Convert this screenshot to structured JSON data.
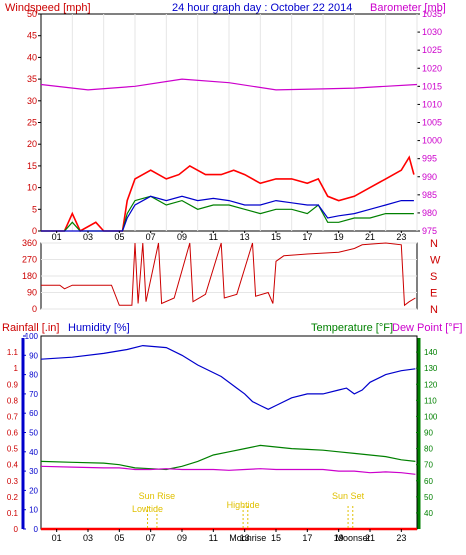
{
  "chart_data": [
    {
      "type": "line",
      "title": "24 hour graph day : October 22 2014",
      "ylabel_left": "Windspeed [mph]",
      "ylabel_right": "Barometer [mb]",
      "x_hours": [
        "01",
        "03",
        "05",
        "07",
        "09",
        "11",
        "13",
        "15",
        "17",
        "19",
        "21",
        "23"
      ],
      "ylim_left": [
        0,
        50
      ],
      "yticks_left": [
        "0",
        "5",
        "10",
        "15",
        "20",
        "25",
        "30",
        "35",
        "40",
        "45",
        "50"
      ],
      "ylim_right": [
        975,
        1035
      ],
      "yticks_right": [
        "975",
        "980",
        "985",
        "990",
        "995",
        "1000",
        "1005",
        "1010",
        "1015",
        "1020",
        "1025",
        "1030",
        "1035"
      ],
      "colors": {
        "gust": "#ff0000",
        "wind": "#008000",
        "avg": "#0000cc",
        "barometer": "#cc00cc",
        "axis_left": "#cc0000",
        "axis_right": "#cc00cc",
        "title": "#0000cc"
      },
      "series": [
        {
          "key": "barometer",
          "points": [
            [
              0,
              1015.5
            ],
            [
              3,
              1014
            ],
            [
              6,
              1015
            ],
            [
              9,
              1017
            ],
            [
              12,
              1016
            ],
            [
              15,
              1014
            ],
            [
              18,
              1014.3
            ],
            [
              20,
              1014.5
            ],
            [
              22,
              1015
            ],
            [
              24,
              1015.5
            ]
          ]
        },
        {
          "key": "gust",
          "points": [
            [
              0,
              0
            ],
            [
              1.5,
              0
            ],
            [
              2,
              4
            ],
            [
              2.5,
              0
            ],
            [
              3.5,
              2
            ],
            [
              4,
              0
            ],
            [
              5.2,
              0
            ],
            [
              5.5,
              7
            ],
            [
              6,
              12
            ],
            [
              6.5,
              13
            ],
            [
              7,
              14
            ],
            [
              8,
              12
            ],
            [
              8.8,
              13
            ],
            [
              9.5,
              15
            ],
            [
              10.5,
              13
            ],
            [
              11.5,
              13
            ],
            [
              12.3,
              14
            ],
            [
              13,
              13
            ],
            [
              14,
              11
            ],
            [
              15,
              12
            ],
            [
              16,
              12
            ],
            [
              17,
              11
            ],
            [
              17.7,
              12
            ],
            [
              18.3,
              8
            ],
            [
              19,
              7
            ],
            [
              20,
              8
            ],
            [
              21,
              10
            ],
            [
              22,
              12
            ],
            [
              23,
              14
            ],
            [
              23.5,
              17
            ],
            [
              23.8,
              13
            ]
          ]
        },
        {
          "key": "wind",
          "points": [
            [
              0,
              0
            ],
            [
              1.5,
              0
            ],
            [
              2,
              2
            ],
            [
              2.5,
              0
            ],
            [
              5.2,
              0
            ],
            [
              5.5,
              4
            ],
            [
              6,
              7
            ],
            [
              7,
              8
            ],
            [
              8,
              6
            ],
            [
              9,
              7
            ],
            [
              10,
              5
            ],
            [
              11,
              6
            ],
            [
              12,
              6
            ],
            [
              13,
              5
            ],
            [
              14,
              4
            ],
            [
              15,
              5
            ],
            [
              16,
              5
            ],
            [
              17,
              4
            ],
            [
              17.7,
              6
            ],
            [
              18.3,
              2
            ],
            [
              19,
              2
            ],
            [
              20,
              3
            ],
            [
              21,
              3
            ],
            [
              22,
              4
            ],
            [
              23,
              4
            ],
            [
              23.8,
              4
            ]
          ]
        },
        {
          "key": "avg",
          "points": [
            [
              0,
              0
            ],
            [
              5.2,
              0
            ],
            [
              5.5,
              3
            ],
            [
              6,
              6
            ],
            [
              7,
              8
            ],
            [
              8,
              7
            ],
            [
              9,
              8
            ],
            [
              10,
              7
            ],
            [
              11,
              7.5
            ],
            [
              12,
              7
            ],
            [
              13,
              6
            ],
            [
              14,
              6
            ],
            [
              15,
              7
            ],
            [
              16,
              6.5
            ],
            [
              17,
              6
            ],
            [
              17.7,
              6
            ],
            [
              18.3,
              3
            ],
            [
              19,
              3.5
            ],
            [
              20,
              4
            ],
            [
              21,
              5
            ],
            [
              22,
              6
            ],
            [
              23,
              7
            ],
            [
              23.8,
              7
            ]
          ]
        }
      ]
    },
    {
      "type": "line",
      "ylabel_left": "",
      "ylim": [
        0,
        360
      ],
      "yticks_left": [
        "0",
        "90",
        "180",
        "270",
        "360"
      ],
      "yticks_right": [
        "N",
        "W",
        "S",
        "E",
        "N"
      ],
      "colors": {
        "direction": "#cc0000"
      },
      "series": [
        {
          "key": "direction",
          "points": [
            [
              0,
              130
            ],
            [
              1.2,
              130
            ],
            [
              1.5,
              110
            ],
            [
              2,
              130
            ],
            [
              4.5,
              130
            ],
            [
              5,
              20
            ],
            [
              5.8,
              20
            ],
            [
              6,
              360
            ],
            [
              6.2,
              30
            ],
            [
              6.5,
              360
            ],
            [
              6.7,
              40
            ],
            [
              7.5,
              360
            ],
            [
              7.7,
              30
            ],
            [
              8.5,
              60
            ],
            [
              9.5,
              360
            ],
            [
              9.7,
              40
            ],
            [
              10.5,
              80
            ],
            [
              11.5,
              360
            ],
            [
              11.7,
              60
            ],
            [
              12.5,
              80
            ],
            [
              13.5,
              360
            ],
            [
              13.7,
              70
            ],
            [
              14.5,
              90
            ],
            [
              14.8,
              30
            ],
            [
              15,
              260
            ],
            [
              15.5,
              290
            ],
            [
              17,
              300
            ],
            [
              19,
              310
            ],
            [
              20,
              330
            ],
            [
              20.5,
              350
            ],
            [
              22,
              360
            ],
            [
              23,
              350
            ],
            [
              23.2,
              20
            ],
            [
              23.5,
              40
            ],
            [
              23.9,
              60
            ]
          ]
        }
      ]
    },
    {
      "type": "line",
      "ylabel_rain": "Rainfall [.in]",
      "ylabel_humidity": "Humidity [%]",
      "ylabel_temp": "Temperature [°F]",
      "ylabel_dew": "Dew Point [°F]",
      "ylim_humidity": [
        0,
        100
      ],
      "yticks_humidity": [
        "0",
        "10",
        "20",
        "30",
        "40",
        "50",
        "60",
        "70",
        "80",
        "90",
        "100"
      ],
      "ylim_rain": [
        0,
        1.2
      ],
      "yticks_rain": [
        "0",
        "0.1",
        "0.2",
        "0.3",
        "0.4",
        "0.5",
        "0.6",
        "0.7",
        "0.8",
        "0.9",
        "1",
        "1.1"
      ],
      "ylim_temp": [
        30,
        150
      ],
      "yticks_temp": [
        "40",
        "50",
        "60",
        "70",
        "80",
        "90",
        "100",
        "110",
        "120",
        "130",
        "140"
      ],
      "x_labels": [
        "01",
        "03",
        "05",
        "07",
        "09",
        "11",
        "13",
        "15",
        "17",
        "19",
        "21",
        "23"
      ],
      "annotations": [
        {
          "label": "Sun Rise",
          "hour": 7.4
        },
        {
          "label": "Lowtide",
          "hour": 6.8
        },
        {
          "label": "Hightide",
          "hour": 12.9
        },
        {
          "label": "Moonrise",
          "hour": 13.2
        },
        {
          "label": "Sun Set",
          "hour": 19.6
        },
        {
          "label": "Moonset",
          "hour": 19.9
        }
      ],
      "colors": {
        "humidity": "#0000cc",
        "temperature": "#008000",
        "dewpoint": "#cc00cc",
        "rain": "#ff0000",
        "axis_humidity": "#0000cc",
        "axis_temp": "#008000",
        "annot": "#e0c000"
      },
      "series": [
        {
          "key": "humidity",
          "points": [
            [
              0,
              88
            ],
            [
              2,
              89
            ],
            [
              4,
              91
            ],
            [
              5.5,
              93
            ],
            [
              6.5,
              95
            ],
            [
              8,
              94
            ],
            [
              9,
              90
            ],
            [
              10,
              85
            ],
            [
              11.5,
              79
            ],
            [
              12.5,
              73
            ],
            [
              13,
              70
            ],
            [
              13.5,
              66
            ],
            [
              14,
              64
            ],
            [
              14.5,
              62
            ],
            [
              15,
              64
            ],
            [
              16,
              68
            ],
            [
              17,
              70
            ],
            [
              18,
              70
            ],
            [
              19,
              72
            ],
            [
              19.5,
              73
            ],
            [
              20,
              70
            ],
            [
              20.5,
              72
            ],
            [
              21,
              76
            ],
            [
              22,
              80
            ],
            [
              23,
              82
            ],
            [
              23.9,
              83
            ]
          ]
        },
        {
          "key": "temperature",
          "points": [
            [
              0,
              72
            ],
            [
              2,
              71.5
            ],
            [
              4,
              71
            ],
            [
              5,
              70
            ],
            [
              6,
              68
            ],
            [
              7,
              67.5
            ],
            [
              8,
              67
            ],
            [
              9,
              69
            ],
            [
              10,
              72
            ],
            [
              11,
              76
            ],
            [
              12,
              78
            ],
            [
              13,
              80
            ],
            [
              14,
              82
            ],
            [
              15,
              81
            ],
            [
              16,
              80
            ],
            [
              17,
              79.5
            ],
            [
              18,
              79
            ],
            [
              19,
              78
            ],
            [
              20,
              77
            ],
            [
              21,
              76
            ],
            [
              22,
              75
            ],
            [
              23,
              73
            ],
            [
              23.9,
              72
            ]
          ]
        },
        {
          "key": "dewpoint",
          "points": [
            [
              0,
              69
            ],
            [
              2,
              68.5
            ],
            [
              4,
              68
            ],
            [
              5,
              68
            ],
            [
              6,
              67
            ],
            [
              7,
              67
            ],
            [
              8,
              67.5
            ],
            [
              9,
              67
            ],
            [
              10,
              67
            ],
            [
              11,
              67
            ],
            [
              12,
              66.5
            ],
            [
              13,
              67
            ],
            [
              14,
              67.5
            ],
            [
              15,
              67
            ],
            [
              16,
              67
            ],
            [
              17,
              67
            ],
            [
              18,
              67
            ],
            [
              19,
              66
            ],
            [
              20,
              66
            ],
            [
              21,
              65
            ],
            [
              22,
              65.5
            ],
            [
              23,
              65
            ],
            [
              23.9,
              64
            ]
          ]
        },
        {
          "key": "rain",
          "points": [
            [
              0,
              0
            ],
            [
              24,
              0
            ]
          ]
        }
      ]
    }
  ]
}
